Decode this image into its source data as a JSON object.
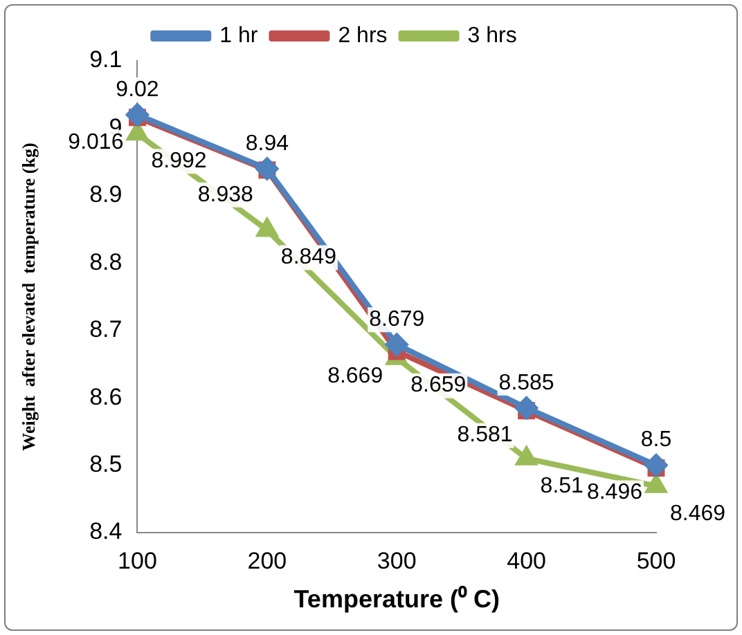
{
  "chart_data": {
    "type": "line",
    "xlabel": "Temperature (⁰ C)",
    "ylabel": "Weight  after elevated  temperature (kg)",
    "categories": [
      "100",
      "200",
      "300",
      "400",
      "500"
    ],
    "series": [
      {
        "name": "1 hr",
        "color": "#4f81bd",
        "marker": "diamond",
        "values": [
          9.02,
          8.94,
          8.679,
          8.585,
          8.5
        ]
      },
      {
        "name": "2 hrs",
        "color": "#c0504d",
        "marker": "square",
        "values": [
          9.016,
          8.938,
          8.669,
          8.581,
          8.496
        ]
      },
      {
        "name": "3 hrs",
        "color": "#9bbb59",
        "marker": "triangle",
        "values": [
          8.992,
          8.849,
          8.659,
          8.51,
          8.469
        ]
      }
    ],
    "ylim": [
      8.4,
      9.1
    ],
    "yticks": [
      8.4,
      8.5,
      8.6,
      8.7,
      8.8,
      8.9,
      9,
      9.1
    ],
    "grid": false,
    "legend": "top",
    "data_labels": true
  }
}
